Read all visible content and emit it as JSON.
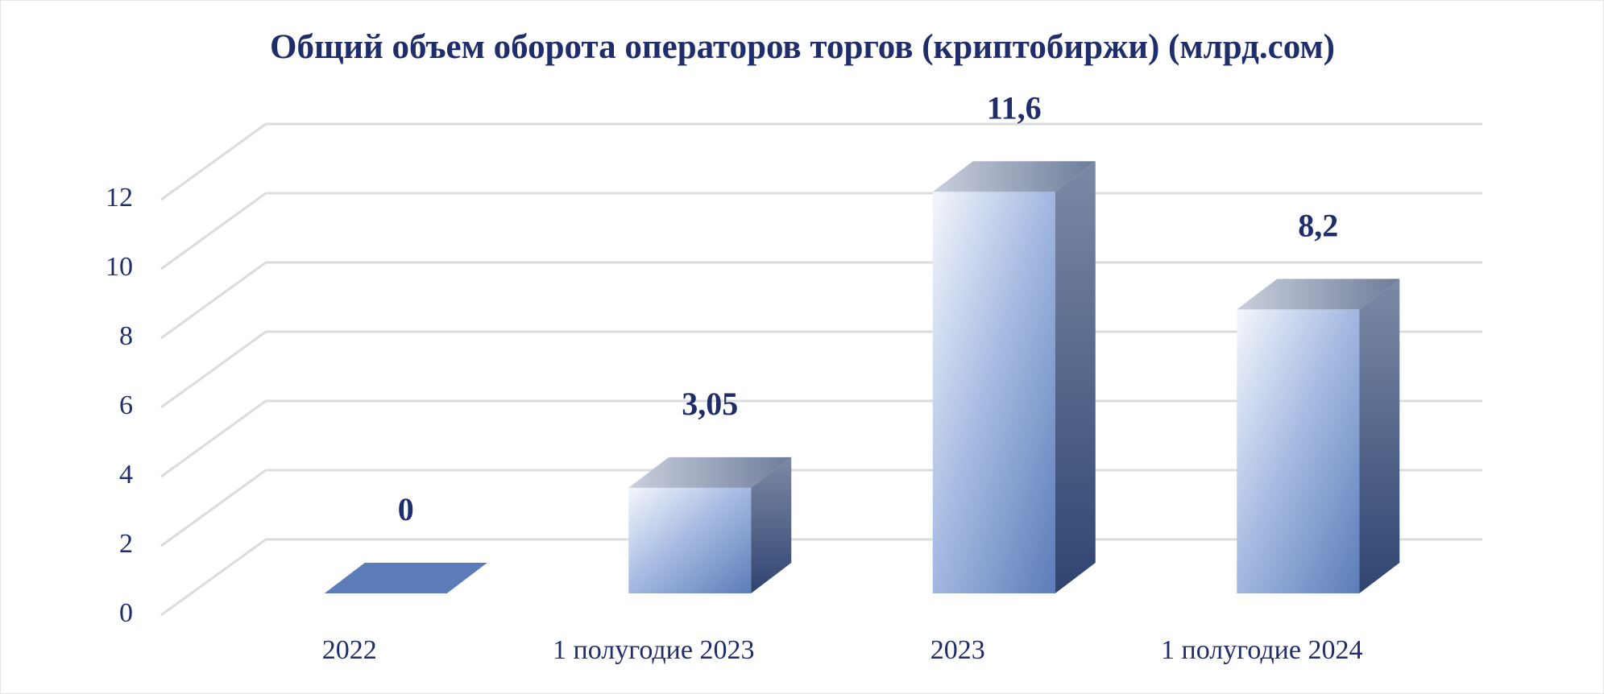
{
  "chart_data": {
    "type": "bar3d",
    "title": "Общий объем оборота операторов торгов (криптобиржи) (млрд.сом)",
    "categories": [
      "2022",
      "1 полугодие 2023",
      "2023",
      "1 полугодие 2024"
    ],
    "values": [
      0,
      3.05,
      11.6,
      8.2
    ],
    "value_labels": [
      "0",
      "3,05",
      "11,6",
      "8,2"
    ],
    "color": "#5b7cb8",
    "ylim": [
      0,
      12
    ],
    "yticks": [
      0,
      2,
      4,
      6,
      8,
      10,
      12
    ],
    "grid": true
  }
}
